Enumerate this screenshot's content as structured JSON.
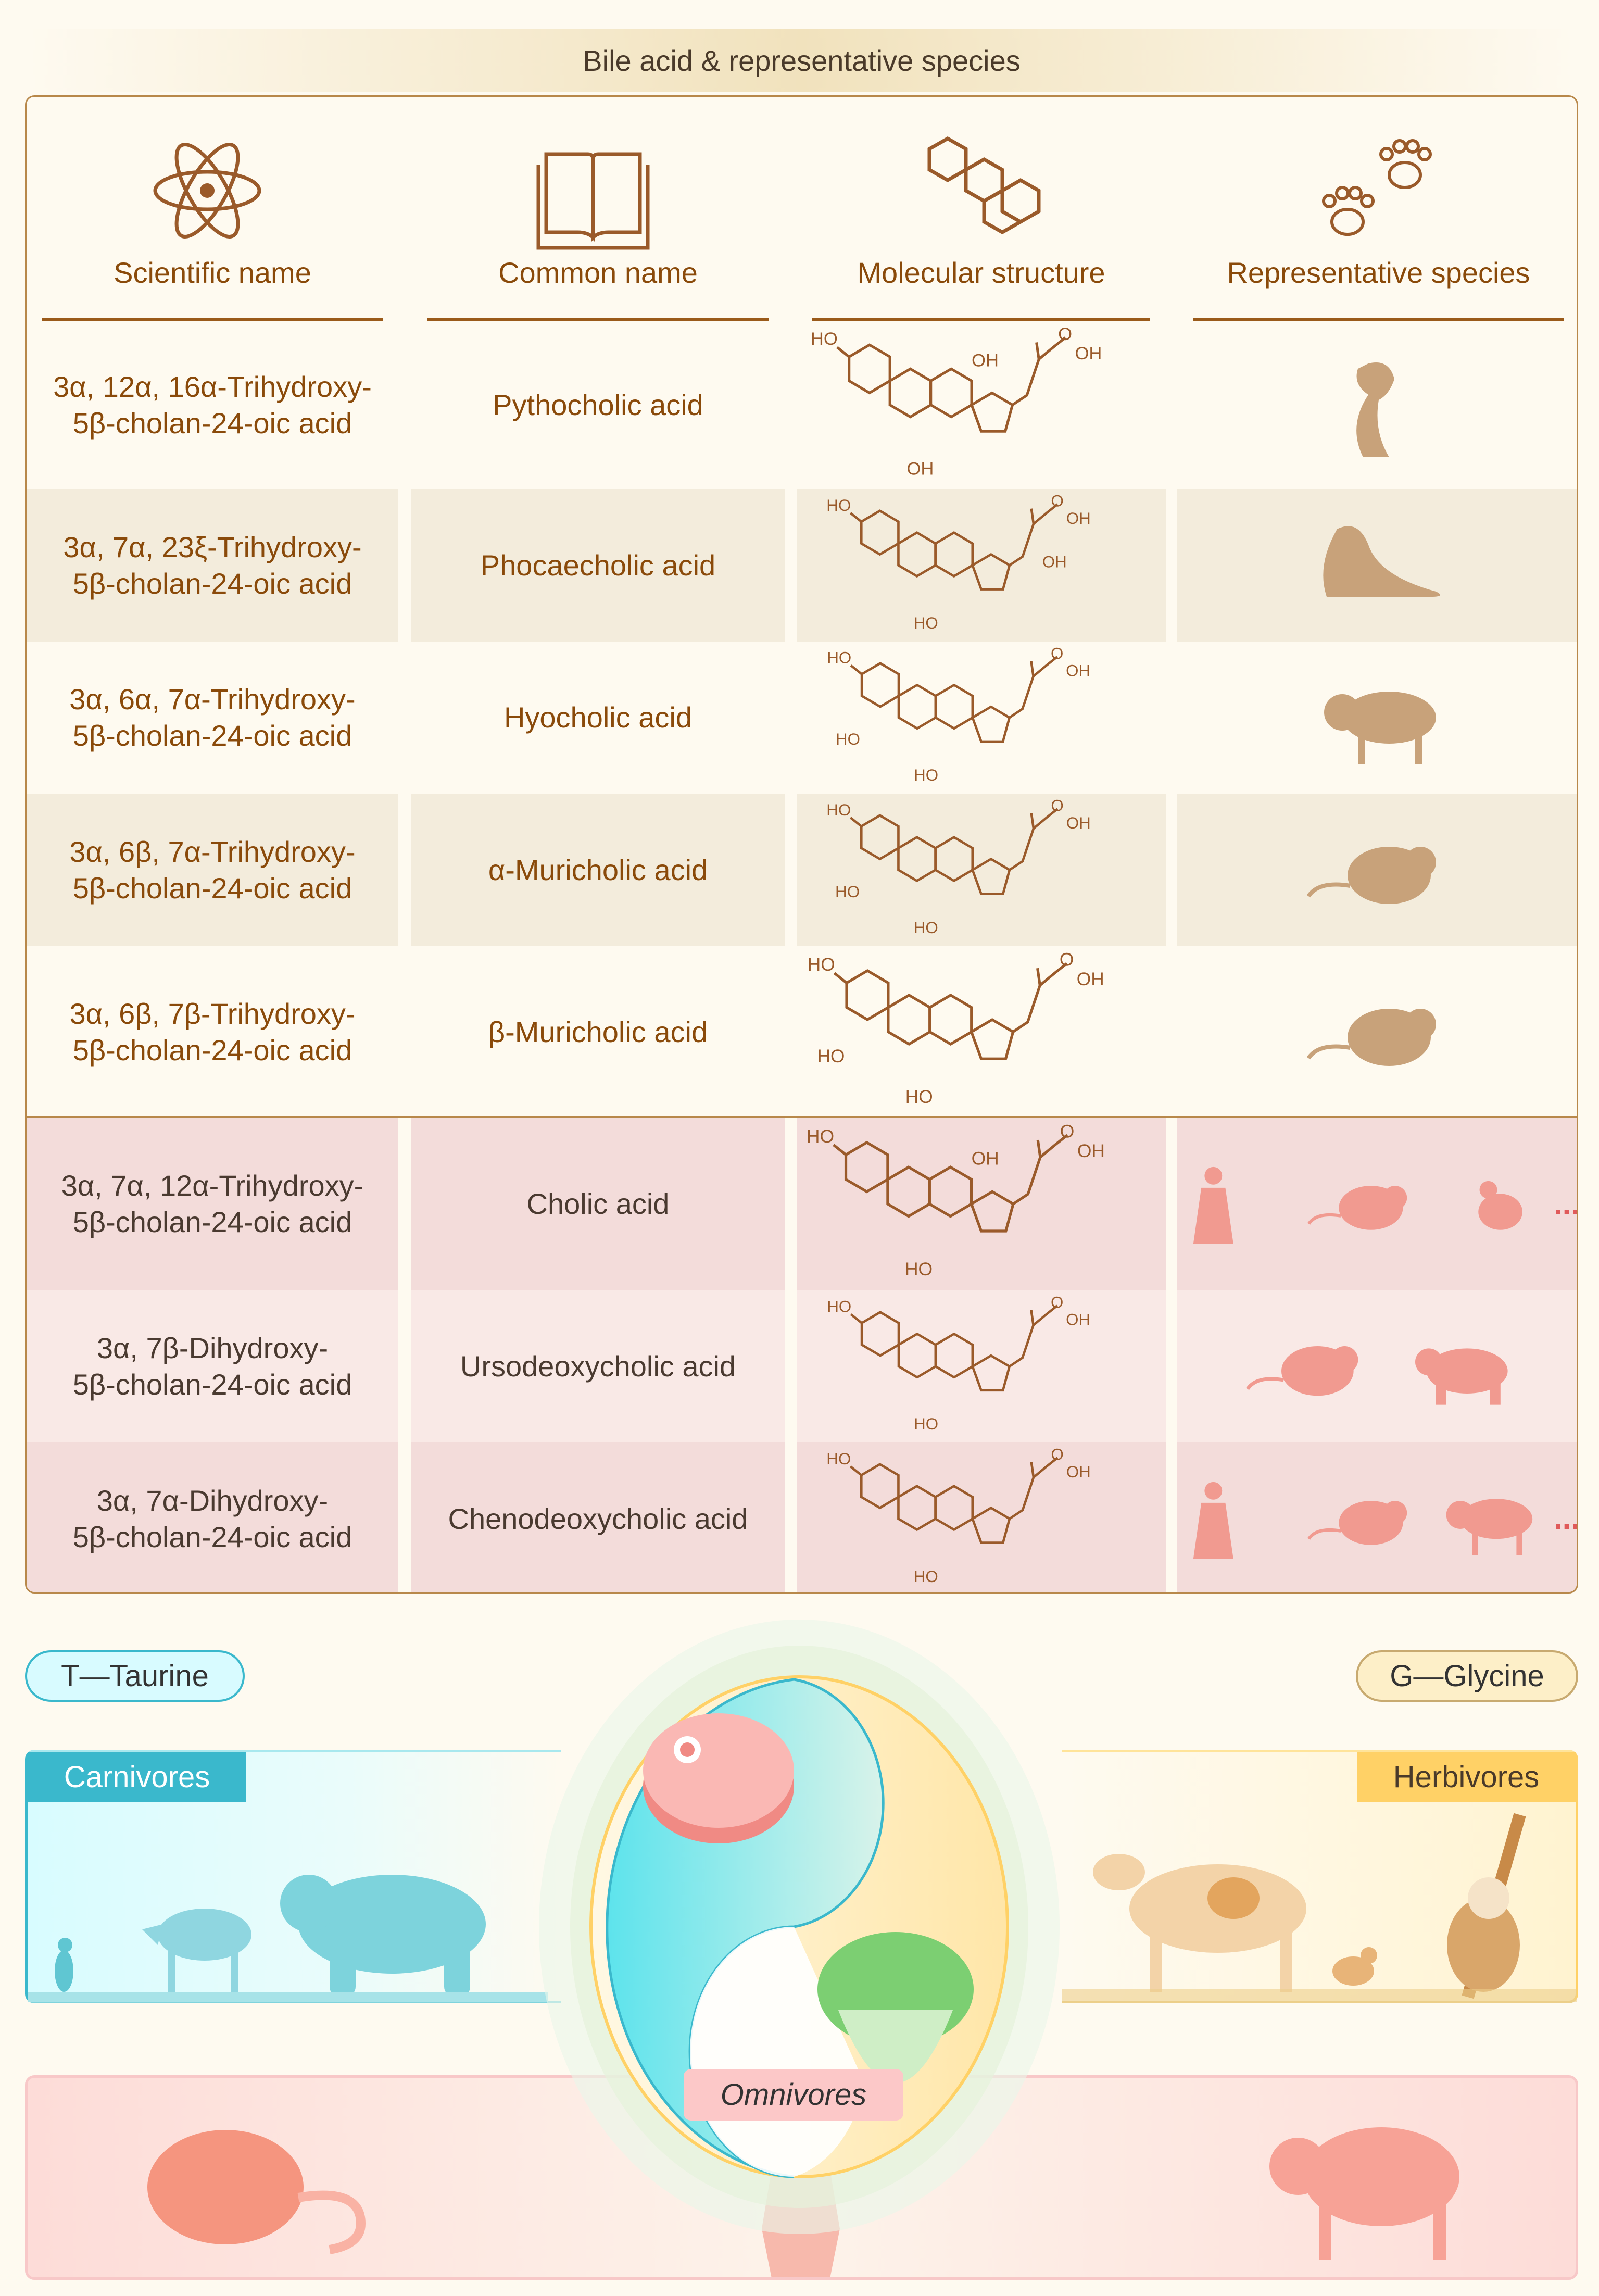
{
  "title": "Bile acid & representative species",
  "headers": [
    {
      "label": "Scientific name",
      "icon": "atom-icon"
    },
    {
      "label": "Common name",
      "icon": "open-book-icon"
    },
    {
      "label": "Molecular structure",
      "icon": "steroid-rings-icon"
    },
    {
      "label": "Representative species",
      "icon": "paw-prints-icon"
    }
  ],
  "rows": [
    {
      "scientific": [
        "3α, 12α, 16α-Trihydroxy-",
        "5β-cholan-24-oic acid"
      ],
      "common": "Pythocholic acid",
      "labels": {
        "top": "HO",
        "mid": "OH",
        "o": "O",
        "acid": "OH",
        "low": "OH"
      },
      "species": [
        "cobra-icon"
      ],
      "group": "tan"
    },
    {
      "scientific": [
        "3α, 7α, 23ξ-Trihydroxy-",
        "5β-cholan-24-oic acid"
      ],
      "common": "Phocaecholic acid",
      "labels": {
        "top": "HO",
        "low": "HO",
        "o": "O",
        "acid": "OH",
        "side": "OH"
      },
      "species": [
        "walrus-icon"
      ],
      "group": "tan"
    },
    {
      "scientific": [
        "3α, 6α, 7α-Trihydroxy-",
        "5β-cholan-24-oic acid"
      ],
      "common": "Hyocholic acid",
      "labels": {
        "top": "HO",
        "left": "HO",
        "low": "HO",
        "o": "O",
        "acid": "OH"
      },
      "species": [
        "pig-icon"
      ],
      "group": "tan"
    },
    {
      "scientific": [
        "3α, 6β, 7α-Trihydroxy-",
        "5β-cholan-24-oic acid"
      ],
      "common": "α-Muricholic acid",
      "labels": {
        "top": "HO",
        "left": "HO",
        "low": "HO",
        "o": "O",
        "acid": "OH"
      },
      "species": [
        "mouse-icon"
      ],
      "group": "tan"
    },
    {
      "scientific": [
        "3α, 6β, 7β-Trihydroxy-",
        "5β-cholan-24-oic acid"
      ],
      "common": "β-Muricholic acid",
      "labels": {
        "top": "HO",
        "left": "HO",
        "low": "HO",
        "o": "O",
        "acid": "OH"
      },
      "species": [
        "mouse-icon"
      ],
      "group": "tan"
    },
    {
      "scientific": [
        "3α, 7α, 12α-Trihydroxy-",
        "5β-cholan-24-oic acid"
      ],
      "common": "Cholic acid",
      "labels": {
        "top": "HO",
        "mid": "OH",
        "low": "HO",
        "o": "O",
        "acid": "OH"
      },
      "species": [
        "human-icon",
        "mouse-icon",
        "chicken-icon"
      ],
      "more": "...",
      "group": "pink"
    },
    {
      "scientific": [
        "3α, 7β-Dihydroxy-",
        "5β-cholan-24-oic acid"
      ],
      "common": "Ursodeoxycholic acid",
      "labels": {
        "top": "HO",
        "low": "HO",
        "o": "O",
        "acid": "OH"
      },
      "species": [
        "mouse-icon",
        "bear-icon"
      ],
      "group": "pink"
    },
    {
      "scientific": [
        "3α, 7α-Dihydroxy-",
        "5β-cholan-24-oic acid"
      ],
      "common": "Chenodeoxycholic acid",
      "labels": {
        "top": "HO",
        "low": "HO",
        "o": "O",
        "acid": "OH"
      },
      "species": [
        "human-icon",
        "mouse-icon",
        "pig-icon"
      ],
      "more": "...",
      "group": "pink"
    }
  ],
  "conjugates": {
    "taurine": "T—Taurine",
    "glycine": "G—Glycine"
  },
  "groups": {
    "carnivores": {
      "label": "Carnivores",
      "species": [
        "cat-icon",
        "wolf-icon",
        "bear-icon"
      ]
    },
    "herbivores": {
      "label": "Herbivores",
      "species": [
        "cow-icon",
        "rabbit-icon",
        "sloth-icon"
      ]
    },
    "omnivores": {
      "label": "Omnivores",
      "species": [
        "mouse-icon",
        "human-icon",
        "pig-icon"
      ]
    }
  },
  "center_icons": [
    "meat-steak-icon",
    "lettuce-icon"
  ],
  "colors": {
    "brown": "#8a4a0a",
    "tan_row": "#f3ecdc",
    "pink_row": "#f3dcda",
    "taurine": "#3ab8cc",
    "glycine": "#ffd166",
    "omnivore": "#f9c9c9"
  }
}
